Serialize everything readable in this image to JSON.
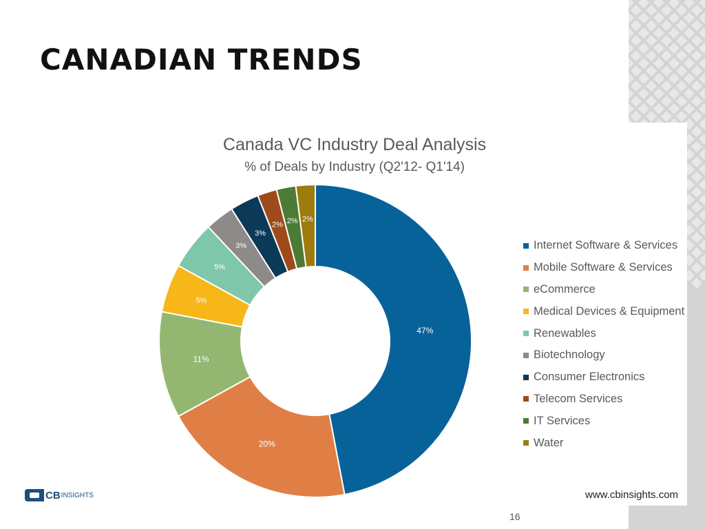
{
  "slide": {
    "title": "CANADIAN TRENDS",
    "page_number": "16",
    "logo": {
      "name": "CB",
      "suffix": "INSIGHTS"
    },
    "source": "www.cbinsights.com"
  },
  "colors": {
    "pattern_bg": "#d4d4d4",
    "pattern_fg": "#e8e8e8"
  },
  "chart_data": {
    "type": "pie",
    "variant": "donut",
    "title": "Canada VC Industry Deal Analysis",
    "subtitle": "% of Deals by Industry (Q2'12- Q1'14)",
    "unit": "%",
    "categories": [
      "Internet Software & Services",
      "Mobile Software & Services",
      "eCommerce",
      "Medical Devices & Equipment",
      "Renewables",
      "Biotechnology",
      "Consumer Electronics",
      "Telecom Services",
      "IT Services",
      "Water"
    ],
    "values": [
      47,
      20,
      11,
      5,
      5,
      3,
      3,
      2,
      2,
      2
    ],
    "data_labels": [
      "47%",
      "20%",
      "11%",
      "5%",
      "5%",
      "3%",
      "3%",
      "2%",
      "2%",
      "2%"
    ],
    "colors": [
      "#08629a",
      "#e07f45",
      "#93b771",
      "#f7b718",
      "#7fc7aa",
      "#8e8a89",
      "#0d3958",
      "#9f4a1b",
      "#4d7b35",
      "#9d7b0d"
    ],
    "legend": "right"
  }
}
